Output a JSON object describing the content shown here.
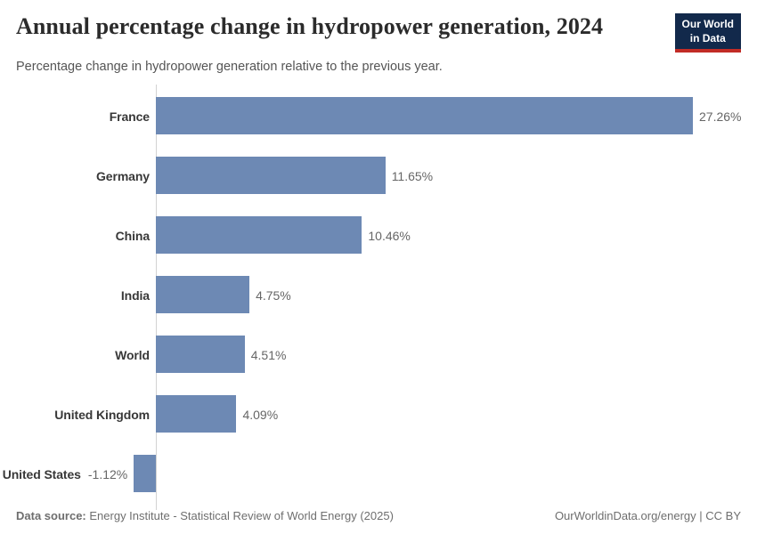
{
  "header": {
    "title": "Annual percentage change in hydropower generation, 2024",
    "subtitle": "Percentage change in hydropower generation relative to the previous year.",
    "logo_line1": "Our World",
    "logo_line2": "in Data"
  },
  "chart_data": {
    "type": "bar",
    "orientation": "horizontal",
    "title": "Annual percentage change in hydropower generation, 2024",
    "subtitle": "Percentage change in hydropower generation relative to the previous year.",
    "categories": [
      "France",
      "Germany",
      "China",
      "India",
      "World",
      "United Kingdom",
      "United States"
    ],
    "values": [
      27.26,
      11.65,
      10.46,
      4.75,
      4.51,
      4.09,
      -1.12
    ],
    "value_labels": [
      "27.26%",
      "11.65%",
      "10.46%",
      "4.75%",
      "4.51%",
      "4.09%",
      "-1.12%"
    ],
    "unit": "%",
    "xlabel": "",
    "ylabel": "",
    "xlim": [
      -1.12,
      27.26
    ],
    "grid": false,
    "legend": false,
    "bar_color": "#6d89b4"
  },
  "footer": {
    "source_label": "Data source:",
    "source_value": "Energy Institute - Statistical Review of World Energy (2025)",
    "credit": "OurWorldinData.org/energy | CC BY"
  },
  "colors": {
    "bar": "#6d89b4",
    "logo_bg": "#12294b",
    "logo_red": "#c22c26",
    "axis_line": "#d2d2d2",
    "title_text": "#2b2b2b",
    "subtitle_text": "#555555",
    "category_text": "#383838",
    "value_text": "#666666",
    "footer_text": "#6e6e6e"
  }
}
